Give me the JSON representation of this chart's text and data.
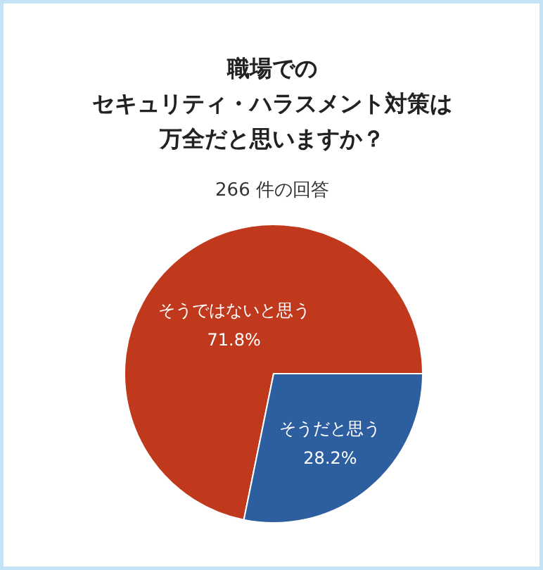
{
  "chart_data": {
    "type": "pie",
    "title": "職場でのセキュリティ・ハラスメント対策は万全だと思いますか？",
    "subtitle": "266 件の回答",
    "categories": [
      "そうではないと思う",
      "そうだと思う"
    ],
    "values": [
      71.8,
      28.2
    ],
    "colors": [
      "#c0391c",
      "#2c5ea0"
    ],
    "value_labels": [
      "71.8%",
      "28.2%"
    ]
  }
}
